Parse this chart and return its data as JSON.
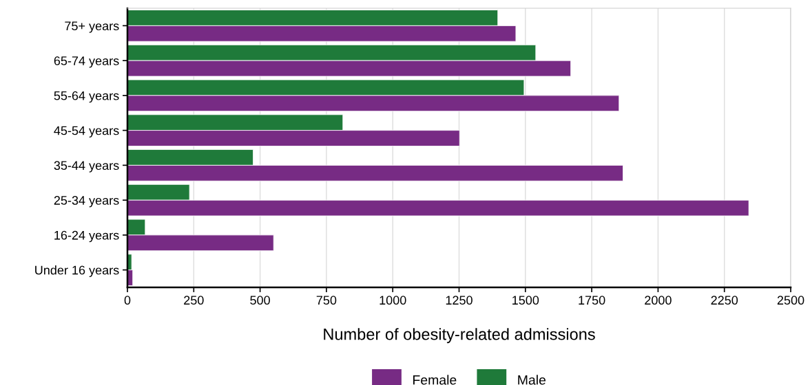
{
  "chart_data": {
    "type": "bar",
    "orientation": "horizontal",
    "xlabel": "Number of obesity-related admissions",
    "categories": [
      "75+ years",
      "65-74 years",
      "55-64 years",
      "45-54 years",
      "35-44 years",
      "25-34 years",
      "16-24 years",
      "Under 16 years"
    ],
    "series": [
      {
        "name": "Male",
        "color": "#1f7a3a",
        "values": [
          1396,
          1539,
          1495,
          812,
          474,
          234,
          67,
          16
        ]
      },
      {
        "name": "Female",
        "color": "#772b84",
        "values": [
          1464,
          1671,
          1853,
          1252,
          1868,
          2342,
          551,
          20
        ]
      }
    ],
    "xlim": [
      0,
      2500
    ],
    "xticks": [
      0,
      250,
      500,
      750,
      1000,
      1250,
      1500,
      1750,
      2000,
      2250,
      2500
    ],
    "grid": "x",
    "legend": "bottom"
  }
}
